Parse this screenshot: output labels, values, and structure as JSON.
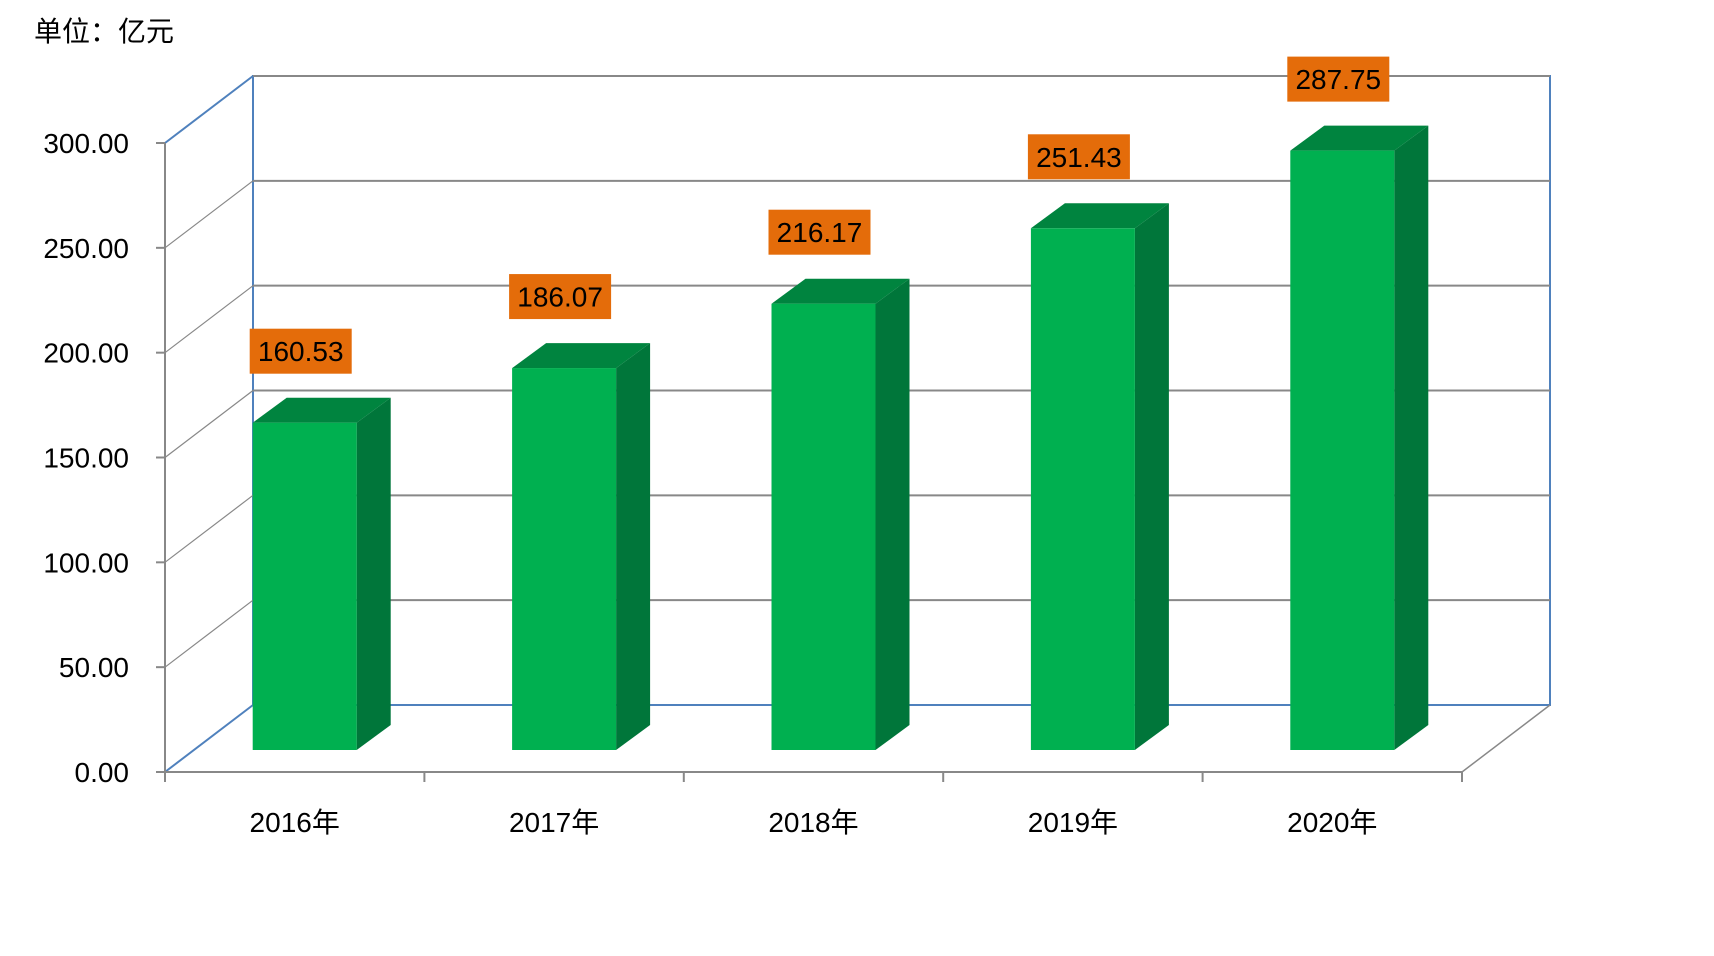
{
  "unit_label": "单位：亿元",
  "colors": {
    "bar_front": "#00b050",
    "bar_side": "#00763a",
    "bar_top": "#00843f",
    "label_bg": "#e46c0a",
    "wall_border": "#4f81bd",
    "grid": "#888888"
  },
  "chart_data": {
    "type": "bar",
    "style": "3d-column",
    "categories": [
      "2016年",
      "2017年",
      "2018年",
      "2019年",
      "2020年"
    ],
    "values": [
      160.53,
      186.07,
      216.17,
      251.43,
      287.75
    ],
    "data_labels": [
      "160.53",
      "186.07",
      "216.17",
      "251.43",
      "287.75"
    ],
    "y_ticks": [
      "0.00",
      "50.00",
      "100.00",
      "150.00",
      "200.00",
      "250.00",
      "300.00"
    ],
    "ylim": [
      0,
      300
    ],
    "title": "",
    "xlabel": "",
    "ylabel": "",
    "grid": true,
    "legend": "none"
  }
}
